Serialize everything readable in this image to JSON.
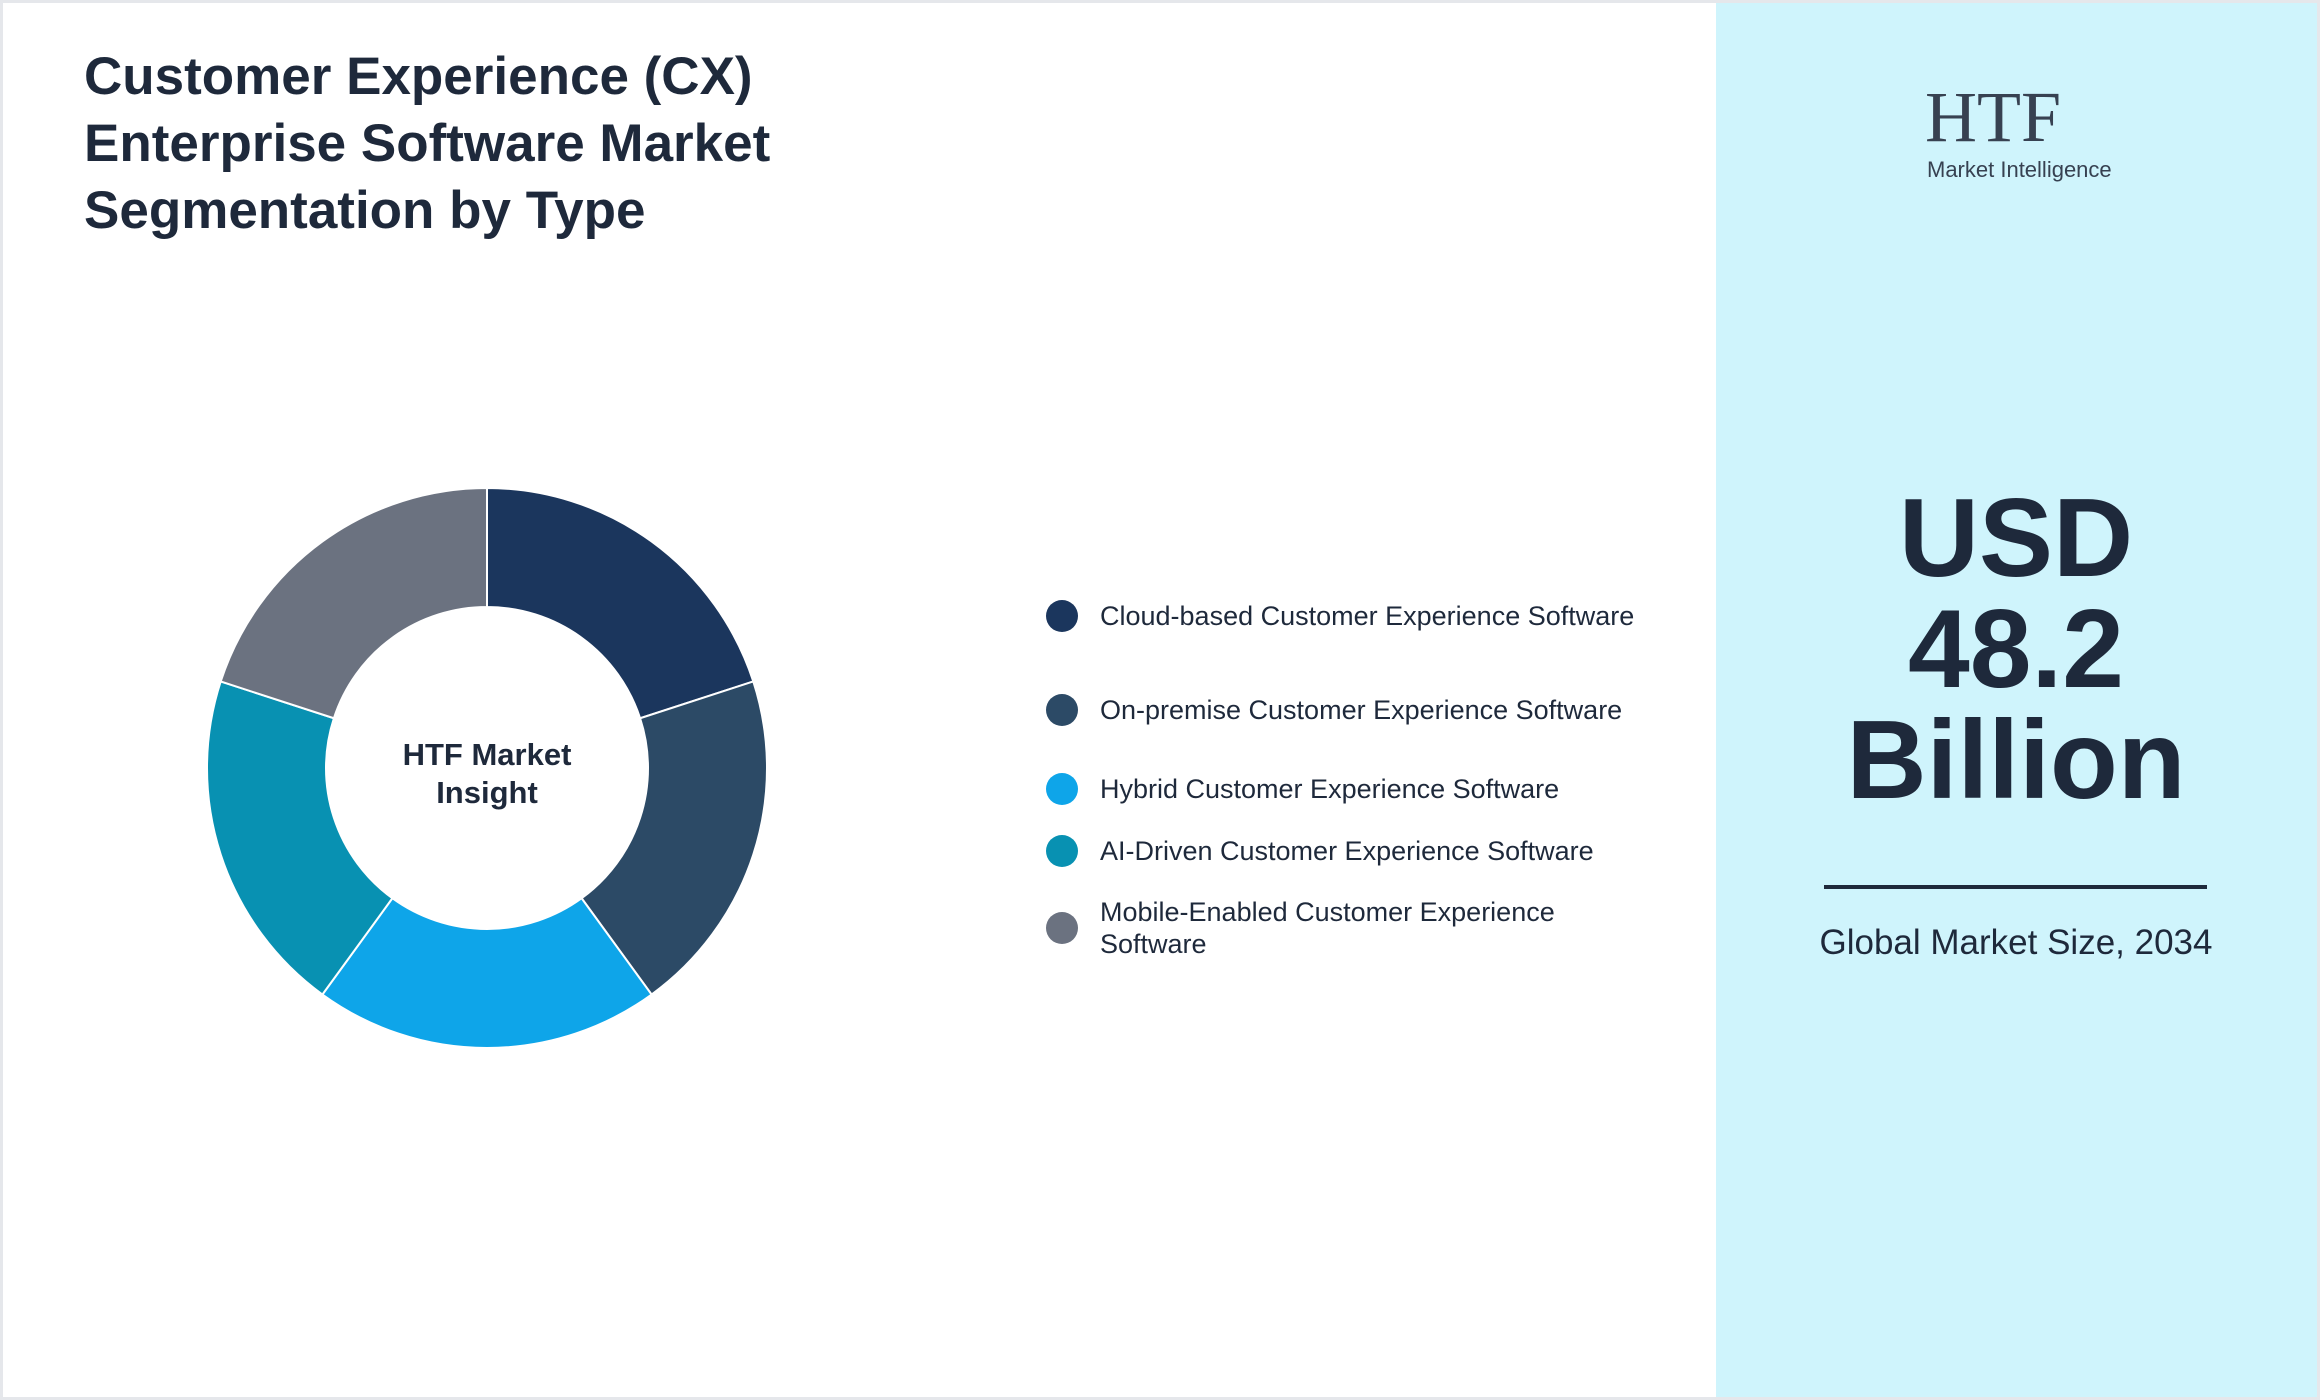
{
  "chart_data": {
    "type": "pie",
    "donut": true,
    "title": "Customer Experience (CX) Enterprise Software Market Segmentation by Type",
    "center_label": "HTF Market Insight",
    "categories": [
      "Cloud-based Customer Experience Software",
      "On-premise Customer Experience Software",
      "Hybrid Customer Experience Software",
      "AI-Driven Customer Experience Software",
      "Mobile-Enabled Customer Experience Software"
    ],
    "values": [
      20,
      20,
      20,
      20,
      20
    ],
    "colors": [
      "#1b365d",
      "#2c4a66",
      "#0ea5e9",
      "#0891b2",
      "#6b7280"
    ]
  },
  "logo": {
    "brand": "HTF",
    "tagline": "Market Intelligence"
  },
  "market_size": {
    "value": "USD 48.2 Billion",
    "caption": "Global Market Size, 2034"
  }
}
